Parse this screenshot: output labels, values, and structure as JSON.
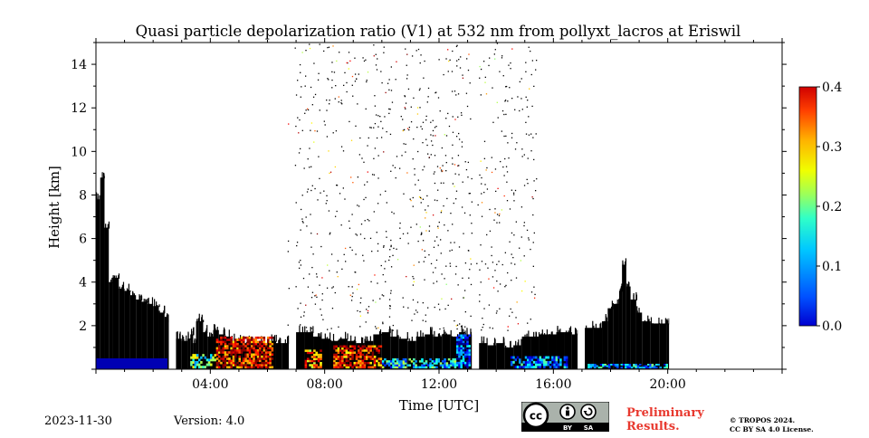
{
  "title": "Quasi particle depolarization ratio (V1) at 532 nm from pollyxt_lacros at Eriswil",
  "footer": {
    "date": "2023-11-30",
    "version": "Version: 4.0",
    "preliminary_line1": "Preliminary",
    "preliminary_line2": "Results.",
    "copyright_line1": "© TROPOS 2024.",
    "copyright_line2": "CC BY SA 4.0 License.",
    "license_badge": {
      "cc": "cc",
      "by": "BY",
      "sa": "SA"
    }
  },
  "chart_data": {
    "type": "heatmap",
    "title": "Quasi particle depolarization ratio (V1) at 532 nm from pollyxt_lacros at Eriswil",
    "xlabel": "Time [UTC]",
    "ylabel": "Height [km]",
    "xlim_hours": [
      0,
      24
    ],
    "ylim_km": [
      0,
      15
    ],
    "xticks": [
      {
        "hour": 4,
        "label": "04:00"
      },
      {
        "hour": 8,
        "label": "08:00"
      },
      {
        "hour": 12,
        "label": "12:00"
      },
      {
        "hour": 16,
        "label": "16:00"
      },
      {
        "hour": 20,
        "label": "20:00"
      }
    ],
    "yticks": [
      {
        "value": 2,
        "label": "2"
      },
      {
        "value": 4,
        "label": "4"
      },
      {
        "value": 6,
        "label": "6"
      },
      {
        "value": 8,
        "label": "8"
      },
      {
        "value": 10,
        "label": "10"
      },
      {
        "value": 12,
        "label": "12"
      },
      {
        "value": 14,
        "label": "14"
      }
    ],
    "colorbar": {
      "min": 0.0,
      "max": 0.4,
      "colormap": "jet",
      "ticks": [
        {
          "value": 0.0,
          "label": "0.0"
        },
        {
          "value": 0.1,
          "label": "0.1"
        },
        {
          "value": 0.2,
          "label": "0.2"
        },
        {
          "value": 0.3,
          "label": "0.3"
        },
        {
          "value": 0.4,
          "label": "0.4"
        }
      ]
    },
    "black_columns": [
      {
        "t": 0.0,
        "top": 7.8
      },
      {
        "t": 0.15,
        "top": 8.8
      },
      {
        "t": 0.3,
        "top": 6.5
      },
      {
        "t": 0.45,
        "top": 4.0
      },
      {
        "t": 0.6,
        "top": 4.2
      },
      {
        "t": 0.8,
        "top": 3.7
      },
      {
        "t": 1.0,
        "top": 3.6
      },
      {
        "t": 1.2,
        "top": 3.4
      },
      {
        "t": 1.4,
        "top": 3.2
      },
      {
        "t": 1.6,
        "top": 3.1
      },
      {
        "t": 1.8,
        "top": 3.0
      },
      {
        "t": 2.0,
        "top": 2.9
      },
      {
        "t": 2.2,
        "top": 2.6
      },
      {
        "t": 2.4,
        "top": 2.4
      },
      {
        "t": 2.5,
        "top": 2.2
      },
      {
        "t": 2.55,
        "top": null
      },
      {
        "t": 2.8,
        "top": 1.4
      },
      {
        "t": 3.0,
        "top": 1.3
      },
      {
        "t": 3.2,
        "top": 1.4
      },
      {
        "t": 3.3,
        "top": 1.6
      },
      {
        "t": 3.4,
        "top": 1.2
      },
      {
        "t": 3.5,
        "top": 2.2
      },
      {
        "t": 3.6,
        "top": 2.2
      },
      {
        "t": 3.75,
        "top": 1.7
      },
      {
        "t": 3.9,
        "top": 1.5
      },
      {
        "t": 4.1,
        "top": 1.8
      },
      {
        "t": 4.3,
        "top": 1.6
      },
      {
        "t": 4.5,
        "top": 1.5
      },
      {
        "t": 4.7,
        "top": 1.3
      },
      {
        "t": 4.9,
        "top": 1.3
      },
      {
        "t": 5.1,
        "top": 1.2
      },
      {
        "t": 5.4,
        "top": 1.2
      },
      {
        "t": 5.7,
        "top": 1.2
      },
      {
        "t": 6.0,
        "top": 1.3
      },
      {
        "t": 6.3,
        "top": 1.2
      },
      {
        "t": 6.5,
        "top": 1.2
      },
      {
        "t": 6.75,
        "top": null
      },
      {
        "t": 7.0,
        "top": 1.7
      },
      {
        "t": 7.3,
        "top": 1.7
      },
      {
        "t": 7.6,
        "top": 1.5
      },
      {
        "t": 7.9,
        "top": 1.4
      },
      {
        "t": 8.2,
        "top": 1.3
      },
      {
        "t": 8.5,
        "top": 1.4
      },
      {
        "t": 8.8,
        "top": 1.3
      },
      {
        "t": 9.1,
        "top": 1.2
      },
      {
        "t": 9.4,
        "top": 1.3
      },
      {
        "t": 9.7,
        "top": 1.6
      },
      {
        "t": 10.0,
        "top": 1.7
      },
      {
        "t": 10.3,
        "top": 1.5
      },
      {
        "t": 10.6,
        "top": 1.4
      },
      {
        "t": 10.9,
        "top": 1.3
      },
      {
        "t": 11.2,
        "top": 1.5
      },
      {
        "t": 11.5,
        "top": 1.6
      },
      {
        "t": 11.8,
        "top": 1.5
      },
      {
        "t": 12.1,
        "top": 1.6
      },
      {
        "t": 12.4,
        "top": 1.5
      },
      {
        "t": 12.7,
        "top": 1.7
      },
      {
        "t": 12.9,
        "top": 1.6
      },
      {
        "t": 13.15,
        "top": null
      },
      {
        "t": 13.4,
        "top": 1.2
      },
      {
        "t": 13.7,
        "top": 1.1
      },
      {
        "t": 14.0,
        "top": 1.2
      },
      {
        "t": 14.3,
        "top": 1.0
      },
      {
        "t": 14.6,
        "top": 1.1
      },
      {
        "t": 14.9,
        "top": 1.5
      },
      {
        "t": 15.2,
        "top": 1.5
      },
      {
        "t": 15.5,
        "top": 1.6
      },
      {
        "t": 15.8,
        "top": 1.6
      },
      {
        "t": 16.1,
        "top": 1.7
      },
      {
        "t": 16.4,
        "top": 1.7
      },
      {
        "t": 16.65,
        "top": 1.6
      },
      {
        "t": 16.85,
        "top": null
      },
      {
        "t": 17.1,
        "top": 1.9
      },
      {
        "t": 17.4,
        "top": 1.9
      },
      {
        "t": 17.7,
        "top": 2.2
      },
      {
        "t": 17.9,
        "top": 2.8
      },
      {
        "t": 18.1,
        "top": 3.0
      },
      {
        "t": 18.3,
        "top": 3.6
      },
      {
        "t": 18.4,
        "top": 4.8
      },
      {
        "t": 18.55,
        "top": 3.8
      },
      {
        "t": 18.7,
        "top": 3.2
      },
      {
        "t": 18.9,
        "top": 2.6
      },
      {
        "t": 19.1,
        "top": 2.2
      },
      {
        "t": 19.4,
        "top": 2.1
      },
      {
        "t": 19.7,
        "top": 2.1
      },
      {
        "t": 19.95,
        "top": 2.1
      },
      {
        "t": 20.05,
        "top": null
      }
    ],
    "data_gaps_hours": [
      [
        2.55,
        2.75
      ],
      [
        6.75,
        6.95
      ],
      [
        13.15,
        13.3
      ],
      [
        16.85,
        17.05
      ],
      [
        20.05,
        24.0
      ]
    ],
    "blue_layer": {
      "start_hour": 0.0,
      "end_hour": 2.5,
      "top_km": 0.5,
      "value": 0.02
    },
    "depol_patches": [
      {
        "t0": 4.2,
        "t1": 6.2,
        "h0": 0.05,
        "h1": 1.5,
        "value": 0.35
      },
      {
        "t0": 3.3,
        "t1": 4.2,
        "h0": 0.05,
        "h1": 0.7,
        "value": 0.18
      },
      {
        "t0": 7.3,
        "t1": 7.9,
        "h0": 0.05,
        "h1": 0.9,
        "value": 0.3
      },
      {
        "t0": 8.3,
        "t1": 10.0,
        "h0": 0.05,
        "h1": 1.1,
        "value": 0.33
      },
      {
        "t0": 10.0,
        "t1": 12.6,
        "h0": 0.05,
        "h1": 0.5,
        "value": 0.14
      },
      {
        "t0": 12.6,
        "t1": 13.1,
        "h0": 0.05,
        "h1": 1.6,
        "value": 0.07
      },
      {
        "t0": 14.5,
        "t1": 16.5,
        "h0": 0.05,
        "h1": 0.6,
        "value": 0.1
      },
      {
        "t0": 17.2,
        "t1": 20.0,
        "h0": 0.05,
        "h1": 0.25,
        "value": 0.12
      }
    ],
    "sparse_noise_window_hours": [
      6.7,
      15.4
    ],
    "colorbar_label_note": ""
  }
}
